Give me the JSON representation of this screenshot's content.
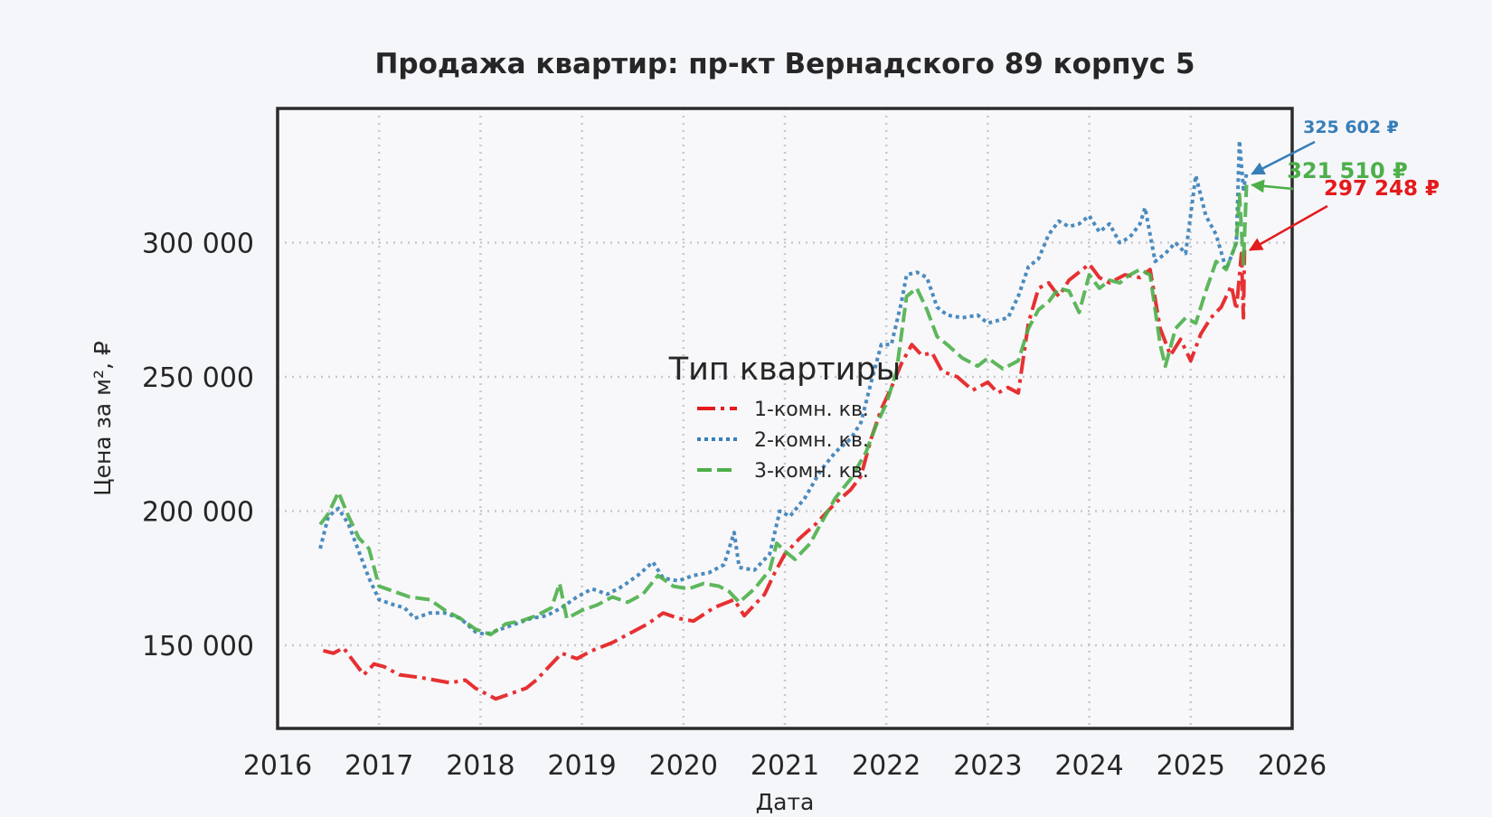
{
  "chart_data": {
    "type": "line",
    "title": "Продажа квартир: пр-кт Вернадского 89 корпус 5",
    "xlabel": "Дата",
    "ylabel": "Цена за м², ₽",
    "x_ticks": [
      "2016",
      "2017",
      "2018",
      "2019",
      "2020",
      "2021",
      "2022",
      "2023",
      "2024",
      "2025",
      "2026"
    ],
    "y_ticks": [
      "150 000",
      "200 000",
      "250 000",
      "300 000"
    ],
    "xlim": [
      2016.0,
      2026.0
    ],
    "ylim": [
      119000,
      350000
    ],
    "grid": true,
    "legend": {
      "title": "Тип квартиры",
      "placement": "center",
      "entries": [
        "1-комн. кв.",
        "2-комн. кв.",
        "3-комн. кв."
      ]
    },
    "series": [
      {
        "name": "1-комн. кв.",
        "color": "#e41a1c",
        "dash": "20 6 4 6",
        "end_label": "297 248 ₽",
        "points": [
          [
            2016.45,
            148000
          ],
          [
            2016.55,
            147000
          ],
          [
            2016.65,
            149000
          ],
          [
            2016.75,
            144000
          ],
          [
            2016.85,
            139000
          ],
          [
            2016.95,
            143000
          ],
          [
            2017.05,
            142000
          ],
          [
            2017.2,
            139000
          ],
          [
            2017.4,
            138000
          ],
          [
            2017.55,
            137000
          ],
          [
            2017.7,
            136000
          ],
          [
            2017.85,
            137000
          ],
          [
            2017.95,
            134000
          ],
          [
            2018.05,
            132000
          ],
          [
            2018.15,
            130000
          ],
          [
            2018.3,
            132000
          ],
          [
            2018.45,
            134000
          ],
          [
            2018.55,
            137000
          ],
          [
            2018.7,
            143000
          ],
          [
            2018.8,
            147000
          ],
          [
            2018.95,
            145000
          ],
          [
            2019.1,
            148000
          ],
          [
            2019.3,
            151000
          ],
          [
            2019.5,
            155000
          ],
          [
            2019.65,
            158000
          ],
          [
            2019.8,
            162000
          ],
          [
            2019.95,
            160000
          ],
          [
            2020.1,
            159000
          ],
          [
            2020.3,
            164000
          ],
          [
            2020.5,
            167000
          ],
          [
            2020.6,
            161000
          ],
          [
            2020.7,
            165000
          ],
          [
            2020.8,
            169000
          ],
          [
            2020.9,
            177000
          ],
          [
            2021.0,
            184000
          ],
          [
            2021.15,
            190000
          ],
          [
            2021.3,
            195000
          ],
          [
            2021.5,
            203000
          ],
          [
            2021.65,
            208000
          ],
          [
            2021.75,
            213000
          ],
          [
            2021.85,
            227000
          ],
          [
            2021.95,
            238000
          ],
          [
            2022.05,
            246000
          ],
          [
            2022.15,
            255000
          ],
          [
            2022.25,
            262000
          ],
          [
            2022.35,
            258000
          ],
          [
            2022.45,
            259000
          ],
          [
            2022.55,
            252000
          ],
          [
            2022.7,
            250000
          ],
          [
            2022.85,
            245000
          ],
          [
            2023.0,
            248000
          ],
          [
            2023.1,
            244000
          ],
          [
            2023.2,
            246000
          ],
          [
            2023.3,
            244000
          ],
          [
            2023.4,
            270000
          ],
          [
            2023.5,
            283000
          ],
          [
            2023.6,
            285000
          ],
          [
            2023.7,
            280000
          ],
          [
            2023.8,
            286000
          ],
          [
            2023.9,
            289000
          ],
          [
            2024.0,
            292000
          ],
          [
            2024.1,
            287000
          ],
          [
            2024.2,
            285000
          ],
          [
            2024.35,
            288000
          ],
          [
            2024.5,
            287000
          ],
          [
            2024.6,
            290000
          ],
          [
            2024.7,
            268000
          ],
          [
            2024.8,
            258000
          ],
          [
            2024.9,
            264000
          ],
          [
            2025.0,
            256000
          ],
          [
            2025.1,
            266000
          ],
          [
            2025.2,
            272000
          ],
          [
            2025.3,
            276000
          ],
          [
            2025.4,
            284000
          ],
          [
            2025.45,
            275000
          ],
          [
            2025.5,
            296000
          ],
          [
            2025.52,
            272000
          ],
          [
            2025.53,
            297248
          ]
        ]
      },
      {
        "name": "2-комн. кв.",
        "color": "#377eb8",
        "dash": "4 4",
        "end_label": "325 602 ₽",
        "points": [
          [
            2016.42,
            186000
          ],
          [
            2016.5,
            198000
          ],
          [
            2016.6,
            201000
          ],
          [
            2016.7,
            195000
          ],
          [
            2016.8,
            185000
          ],
          [
            2016.9,
            175000
          ],
          [
            2017.0,
            167000
          ],
          [
            2017.15,
            165000
          ],
          [
            2017.25,
            164000
          ],
          [
            2017.35,
            160000
          ],
          [
            2017.5,
            162000
          ],
          [
            2017.65,
            162000
          ],
          [
            2017.8,
            160000
          ],
          [
            2017.95,
            155000
          ],
          [
            2018.05,
            154000
          ],
          [
            2018.2,
            156000
          ],
          [
            2018.35,
            158000
          ],
          [
            2018.5,
            160000
          ],
          [
            2018.65,
            161000
          ],
          [
            2018.8,
            164000
          ],
          [
            2018.95,
            168000
          ],
          [
            2019.1,
            171000
          ],
          [
            2019.25,
            169000
          ],
          [
            2019.4,
            172000
          ],
          [
            2019.55,
            176000
          ],
          [
            2019.7,
            181000
          ],
          [
            2019.8,
            175000
          ],
          [
            2019.95,
            174000
          ],
          [
            2020.1,
            176000
          ],
          [
            2020.25,
            177000
          ],
          [
            2020.4,
            180000
          ],
          [
            2020.5,
            192000
          ],
          [
            2020.55,
            179000
          ],
          [
            2020.7,
            178000
          ],
          [
            2020.85,
            184000
          ],
          [
            2020.95,
            200000
          ],
          [
            2021.05,
            198000
          ],
          [
            2021.2,
            205000
          ],
          [
            2021.35,
            215000
          ],
          [
            2021.5,
            222000
          ],
          [
            2021.65,
            227000
          ],
          [
            2021.75,
            233000
          ],
          [
            2021.85,
            248000
          ],
          [
            2021.95,
            262000
          ],
          [
            2022.05,
            262000
          ],
          [
            2022.15,
            278000
          ],
          [
            2022.2,
            288000
          ],
          [
            2022.3,
            289000
          ],
          [
            2022.4,
            287000
          ],
          [
            2022.5,
            276000
          ],
          [
            2022.6,
            273000
          ],
          [
            2022.75,
            272000
          ],
          [
            2022.9,
            273000
          ],
          [
            2023.0,
            270000
          ],
          [
            2023.1,
            271000
          ],
          [
            2023.2,
            272000
          ],
          [
            2023.3,
            280000
          ],
          [
            2023.4,
            291000
          ],
          [
            2023.5,
            294000
          ],
          [
            2023.6,
            303000
          ],
          [
            2023.7,
            308000
          ],
          [
            2023.8,
            306000
          ],
          [
            2023.9,
            307000
          ],
          [
            2024.0,
            310000
          ],
          [
            2024.1,
            304000
          ],
          [
            2024.2,
            307000
          ],
          [
            2024.3,
            300000
          ],
          [
            2024.4,
            302000
          ],
          [
            2024.5,
            307000
          ],
          [
            2024.55,
            313000
          ],
          [
            2024.65,
            293000
          ],
          [
            2024.75,
            296000
          ],
          [
            2024.85,
            300000
          ],
          [
            2024.95,
            296000
          ],
          [
            2025.05,
            325000
          ],
          [
            2025.15,
            310000
          ],
          [
            2025.25,
            303000
          ],
          [
            2025.35,
            290000
          ],
          [
            2025.45,
            300000
          ],
          [
            2025.48,
            338000
          ],
          [
            2025.52,
            320000
          ],
          [
            2025.55,
            325602
          ]
        ]
      },
      {
        "name": "3-комн. кв.",
        "color": "#4daf4a",
        "dash": "16 6",
        "end_label": "321 510 ₽",
        "points": [
          [
            2016.42,
            195000
          ],
          [
            2016.5,
            199000
          ],
          [
            2016.6,
            207000
          ],
          [
            2016.7,
            198000
          ],
          [
            2016.8,
            190000
          ],
          [
            2016.9,
            186000
          ],
          [
            2017.0,
            172000
          ],
          [
            2017.15,
            170000
          ],
          [
            2017.3,
            168000
          ],
          [
            2017.5,
            167000
          ],
          [
            2017.65,
            163000
          ],
          [
            2017.8,
            160000
          ],
          [
            2017.95,
            156000
          ],
          [
            2018.1,
            154000
          ],
          [
            2018.25,
            158000
          ],
          [
            2018.4,
            159000
          ],
          [
            2018.55,
            161000
          ],
          [
            2018.7,
            164000
          ],
          [
            2018.78,
            173000
          ],
          [
            2018.85,
            160000
          ],
          [
            2019.0,
            163000
          ],
          [
            2019.15,
            165000
          ],
          [
            2019.3,
            168000
          ],
          [
            2019.45,
            166000
          ],
          [
            2019.6,
            169000
          ],
          [
            2019.75,
            176000
          ],
          [
            2019.9,
            172000
          ],
          [
            2020.05,
            171000
          ],
          [
            2020.2,
            173000
          ],
          [
            2020.35,
            172000
          ],
          [
            2020.45,
            170000
          ],
          [
            2020.55,
            166000
          ],
          [
            2020.7,
            171000
          ],
          [
            2020.85,
            178000
          ],
          [
            2020.92,
            188000
          ],
          [
            2021.0,
            185000
          ],
          [
            2021.1,
            182000
          ],
          [
            2021.25,
            188000
          ],
          [
            2021.35,
            195000
          ],
          [
            2021.5,
            205000
          ],
          [
            2021.65,
            212000
          ],
          [
            2021.8,
            222000
          ],
          [
            2021.9,
            232000
          ],
          [
            2022.0,
            240000
          ],
          [
            2022.1,
            252000
          ],
          [
            2022.2,
            280000
          ],
          [
            2022.3,
            283000
          ],
          [
            2022.4,
            275000
          ],
          [
            2022.5,
            265000
          ],
          [
            2022.6,
            262000
          ],
          [
            2022.75,
            257000
          ],
          [
            2022.9,
            254000
          ],
          [
            2023.0,
            257000
          ],
          [
            2023.15,
            253000
          ],
          [
            2023.3,
            256000
          ],
          [
            2023.4,
            268000
          ],
          [
            2023.5,
            275000
          ],
          [
            2023.6,
            278000
          ],
          [
            2023.7,
            283000
          ],
          [
            2023.8,
            282000
          ],
          [
            2023.9,
            274000
          ],
          [
            2024.0,
            288000
          ],
          [
            2024.1,
            283000
          ],
          [
            2024.2,
            286000
          ],
          [
            2024.3,
            285000
          ],
          [
            2024.4,
            288000
          ],
          [
            2024.5,
            290000
          ],
          [
            2024.6,
            288000
          ],
          [
            2024.7,
            262000
          ],
          [
            2024.75,
            254000
          ],
          [
            2024.85,
            268000
          ],
          [
            2024.95,
            272000
          ],
          [
            2025.05,
            270000
          ],
          [
            2025.15,
            282000
          ],
          [
            2025.25,
            293000
          ],
          [
            2025.35,
            290000
          ],
          [
            2025.45,
            300000
          ],
          [
            2025.48,
            318000
          ],
          [
            2025.52,
            292000
          ],
          [
            2025.55,
            321510
          ]
        ]
      }
    ]
  }
}
